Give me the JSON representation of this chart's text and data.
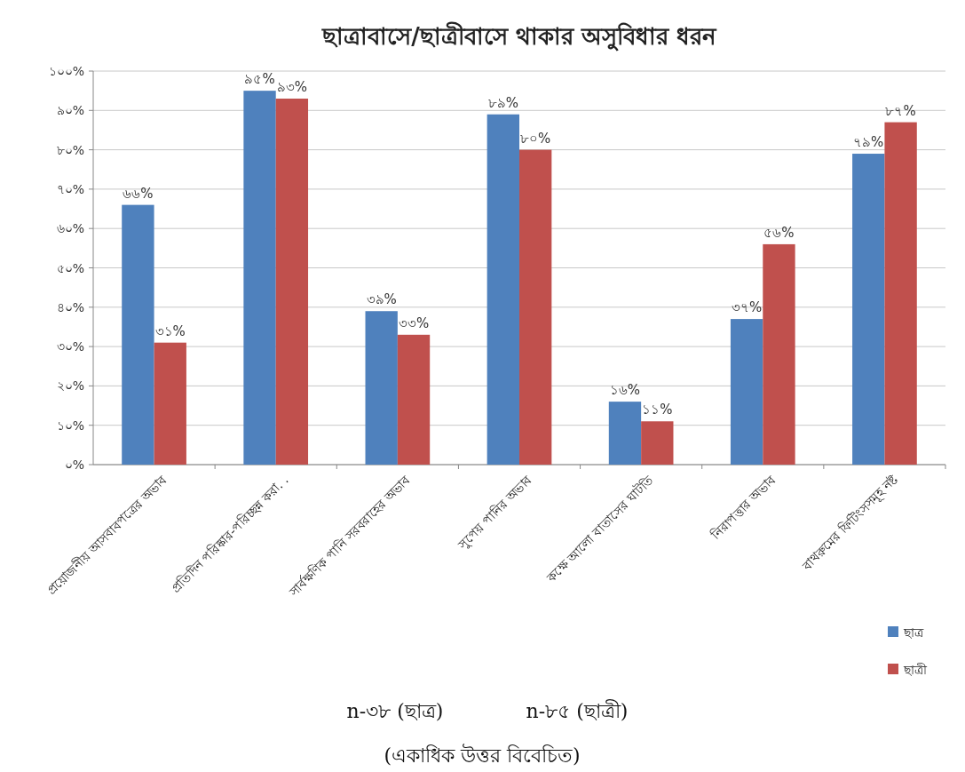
{
  "chart_data": {
    "type": "bar",
    "title": "ছাত্রাবাসে/ছাত্রীবাসে থাকার অসুবিধার ধরন",
    "categories": [
      "প্রয়োজনীয় আসবাবপত্রের অভাব",
      "প্রতিদিন পরিষ্কার-পরিচ্ছন্ন করা. .",
      "সার্বক্ষণিক পানি সরবরাহের অভাব",
      "সুপেয় পানির অভাব",
      "কক্ষে আলো বাতাসের ঘাটতি",
      "নিরাপত্তার অভাব",
      "বাথরুমের ফিটিংসসমূহ নষ্ট"
    ],
    "series": [
      {
        "name": "ছাত্র",
        "color": "#4f81bd",
        "values": [
          66,
          95,
          39,
          89,
          16,
          37,
          79
        ],
        "value_labels": [
          "৬৬%",
          "৯৫%",
          "৩৯%",
          "৮৯%",
          "১৬%",
          "৩৭%",
          "৭৯%"
        ]
      },
      {
        "name": "ছাত্রী",
        "color": "#c0504d",
        "values": [
          31,
          93,
          33,
          80,
          11,
          56,
          87
        ],
        "value_labels": [
          "৩১%",
          "৯৩%",
          "৩৩%",
          "৮০%",
          "১১%",
          "৫৬%",
          "৮৭%"
        ]
      }
    ],
    "ylim": [
      0,
      100
    ],
    "yticks": [
      {
        "value": 0,
        "label": "০%"
      },
      {
        "value": 10,
        "label": "১০%"
      },
      {
        "value": 20,
        "label": "২০%"
      },
      {
        "value": 30,
        "label": "৩০%"
      },
      {
        "value": 40,
        "label": "৪০%"
      },
      {
        "value": 50,
        "label": "৫০%"
      },
      {
        "value": 60,
        "label": "৬০%"
      },
      {
        "value": 70,
        "label": "৭০%"
      },
      {
        "value": 80,
        "label": "৮০%"
      },
      {
        "value": 90,
        "label": "৯০%"
      },
      {
        "value": 100,
        "label": "১০০%"
      }
    ],
    "grid": "y",
    "legend": "right",
    "annotations": [
      "n-৩৮ (ছাত্র)",
      "n-৮৫ (ছাত্রী)",
      "(একাধিক উত্তর বিবেচিত)"
    ]
  }
}
